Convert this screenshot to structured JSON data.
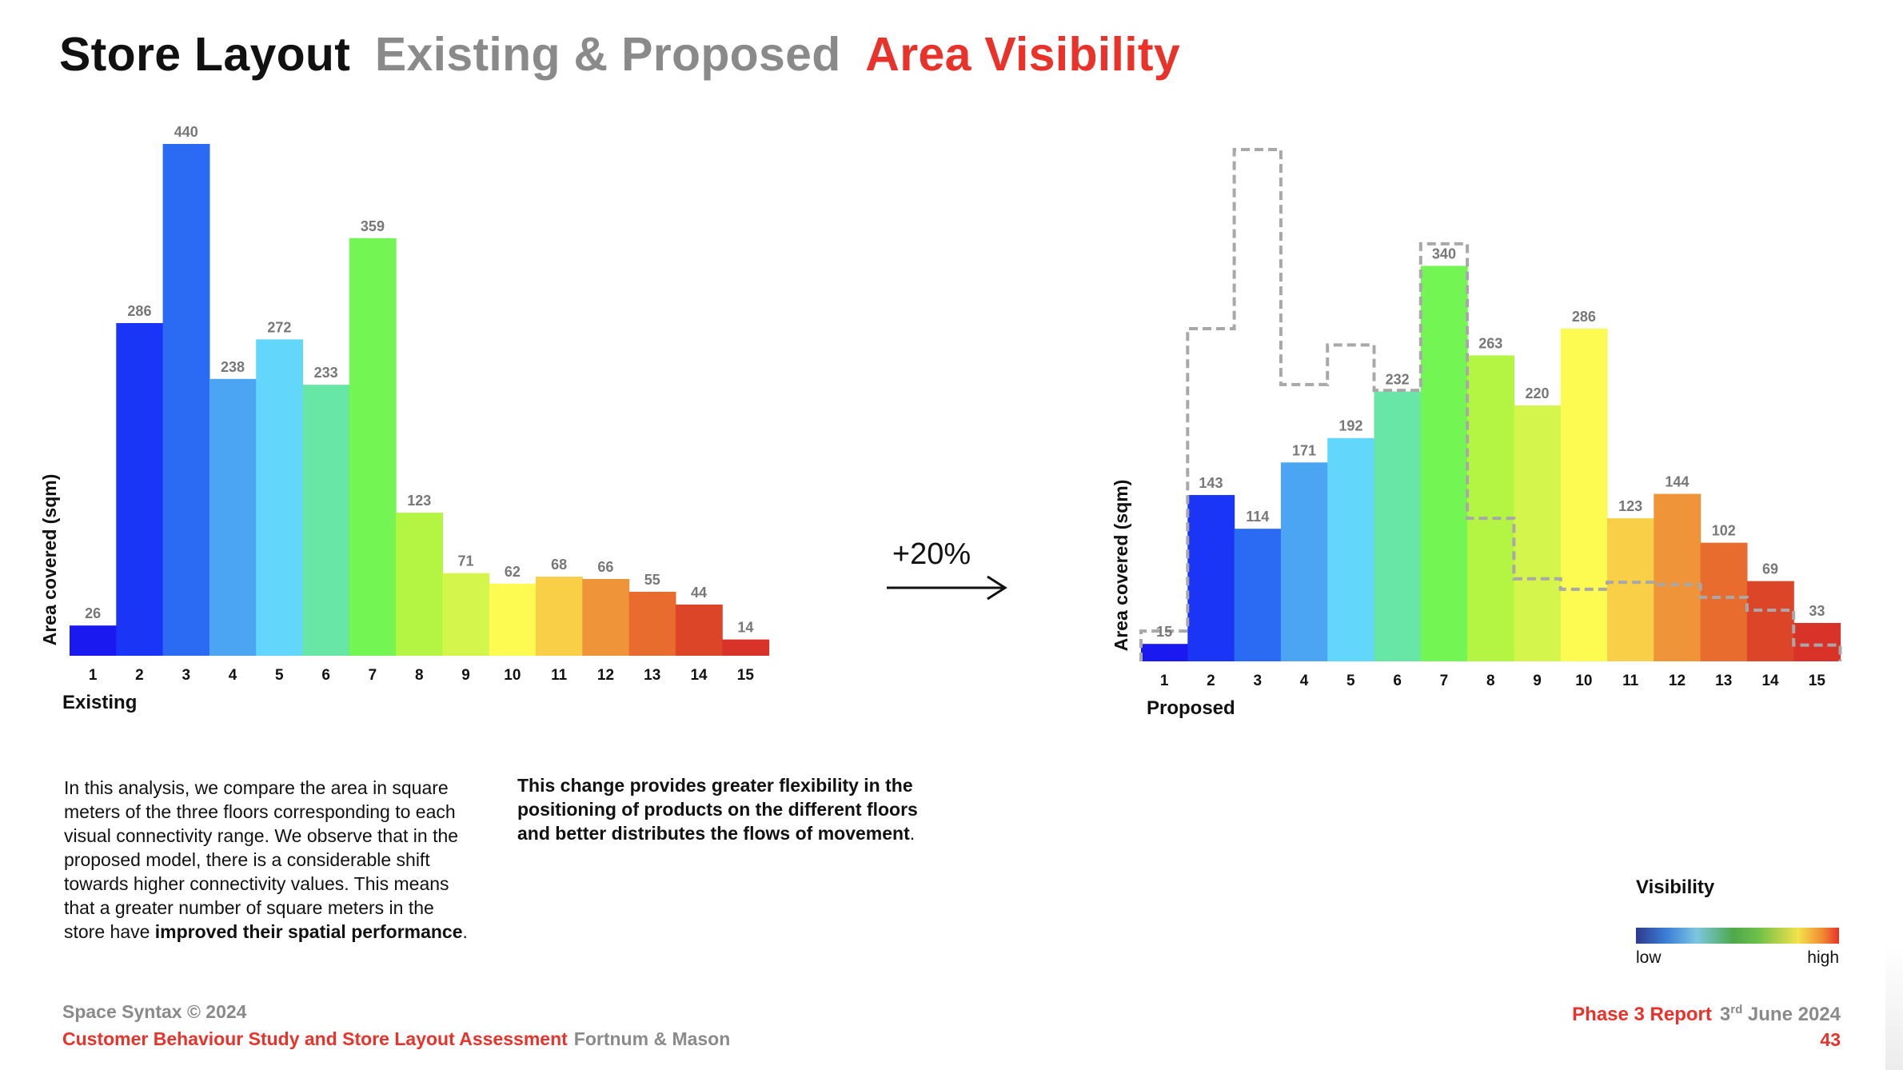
{
  "title": {
    "part1": "Store Layout",
    "part2": "Existing & Proposed",
    "part3": "Area Visibility"
  },
  "change_label": "+20%",
  "paragraph1": {
    "text": "In this analysis, we compare the area in square meters of the three floors corresponding to each visual connectivity range. We observe that in the proposed model, there is a considerable shift towards higher connectivity values. This means that a greater number of square meters in the store have ",
    "emphasis": "improved their spatial performance",
    "end": "."
  },
  "paragraph2": {
    "text": "This  change provides greater flexibility in the positioning of products on the different floors and better distributes the flows of movement",
    "end": "."
  },
  "legend": {
    "title": "Visibility",
    "low": "low",
    "high": "high"
  },
  "footer": {
    "copyright": "Space Syntax © 2024",
    "study": "Customer Behaviour Study and Store Layout Assessment",
    "client": "Fortnum & Mason",
    "phase": "Phase 3 Report",
    "date_day": "3",
    "date_suffix": "rd",
    "date_rest": " June 2024",
    "page": "43"
  },
  "colors": {
    "red_accent": "#e8322a",
    "grey_text": "#8a8a8a",
    "bars": [
      "#1a1af0",
      "#1a35f5",
      "#2b6af2",
      "#4ca5f3",
      "#62d6fb",
      "#68e6a6",
      "#73f553",
      "#b3f542",
      "#d3f54c",
      "#fdfa52",
      "#f8cf47",
      "#f0943a",
      "#e86c2e",
      "#dc4528",
      "#d93228"
    ]
  },
  "chart_data": [
    {
      "type": "bar",
      "title": "Existing",
      "xlabel": "Existing",
      "ylabel": "Area covered (sqm)",
      "categories": [
        "1",
        "2",
        "3",
        "4",
        "5",
        "6",
        "7",
        "8",
        "9",
        "10",
        "11",
        "12",
        "13",
        "14",
        "15"
      ],
      "values": [
        26,
        286,
        440,
        238,
        272,
        233,
        359,
        123,
        71,
        62,
        68,
        66,
        55,
        44,
        14
      ],
      "ylim": [
        0,
        440
      ]
    },
    {
      "type": "bar",
      "title": "Proposed",
      "xlabel": "Proposed",
      "ylabel": "Area covered (sqm)",
      "categories": [
        "1",
        "2",
        "3",
        "4",
        "5",
        "6",
        "7",
        "8",
        "9",
        "10",
        "11",
        "12",
        "13",
        "14",
        "15"
      ],
      "values": [
        15,
        143,
        114,
        171,
        192,
        232,
        340,
        263,
        220,
        286,
        123,
        144,
        102,
        69,
        33
      ],
      "overlay_series": {
        "name": "Existing",
        "style": "dashed-outline",
        "values": [
          26,
          286,
          440,
          238,
          272,
          233,
          359,
          123,
          71,
          62,
          68,
          66,
          55,
          44,
          14
        ]
      },
      "ylim": [
        0,
        440
      ]
    }
  ]
}
